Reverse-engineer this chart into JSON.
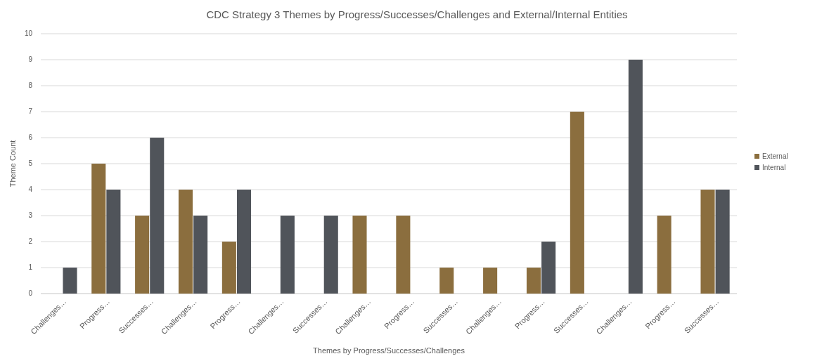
{
  "chart_data": {
    "type": "bar",
    "title": "CDC Strategy 3 Themes by Progress/Successes/Challenges and External/Internal Entities",
    "xlabel": "Themes  by Progress/Successes/Challenges",
    "ylabel": "Theme Count",
    "categories": [
      "Challenges…",
      "Progress…",
      "Successes…",
      "Challenges…",
      "Progress…",
      "Challenges…",
      "Successes…",
      "Challenges…",
      "Progress…",
      "Successes…",
      "Challenges…",
      "Progress…",
      "Successes…",
      "Challenges…",
      "Progress…",
      "Successes…"
    ],
    "series": [
      {
        "name": "External",
        "color": "#8b6e3e",
        "values": [
          null,
          5,
          3,
          4,
          2,
          null,
          null,
          3,
          3,
          1,
          1,
          1,
          7,
          null,
          3,
          4
        ]
      },
      {
        "name": "Internal",
        "color": "#50545a",
        "values": [
          1,
          4,
          6,
          3,
          4,
          3,
          3,
          null,
          null,
          null,
          null,
          2,
          null,
          9,
          null,
          4
        ]
      }
    ],
    "ylim": [
      0,
      10
    ],
    "yticks": [
      0,
      1,
      2,
      3,
      4,
      5,
      6,
      7,
      8,
      9,
      10
    ],
    "grid": "y",
    "legend": "right"
  }
}
